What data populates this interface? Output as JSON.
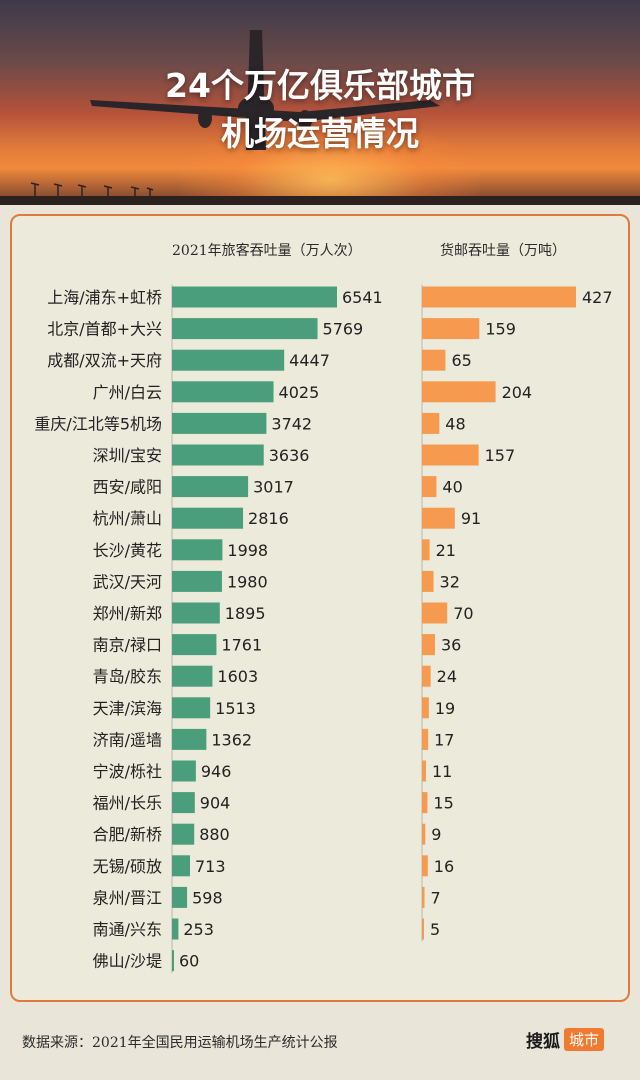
{
  "header": {
    "title_line1": "24个万亿俱乐部城市",
    "title_line2": "机场运营情况"
  },
  "columns": {
    "passenger_header": "2021年旅客吞吐量（万人次）",
    "cargo_header": "货邮吞吐量（万吨）"
  },
  "colors": {
    "passenger_bar": "#4a9e7c",
    "cargo_bar": "#f59a4f",
    "panel_border": "#e07a3c"
  },
  "chart_data": {
    "type": "bar",
    "orientation": "horizontal",
    "categories": [
      "上海/浦东+虹桥",
      "北京/首都+大兴",
      "成都/双流+天府",
      "广州/白云",
      "重庆/江北等5机场",
      "深圳/宝安",
      "西安/咸阳",
      "杭州/萧山",
      "长沙/黄花",
      "武汉/天河",
      "郑州/新郑",
      "南京/禄口",
      "青岛/胶东",
      "天津/滨海",
      "济南/遥墙",
      "宁波/栎社",
      "福州/长乐",
      "合肥/新桥",
      "无锡/硕放",
      "泉州/晋江",
      "南通/兴东",
      "佛山/沙堤"
    ],
    "series": [
      {
        "name": "2021年旅客吞吐量（万人次）",
        "values": [
          6541,
          5769,
          4447,
          4025,
          3742,
          3636,
          3017,
          2816,
          1998,
          1980,
          1895,
          1761,
          1603,
          1513,
          1362,
          946,
          904,
          880,
          713,
          598,
          253,
          60
        ]
      },
      {
        "name": "货邮吞吐量（万吨）",
        "values": [
          427,
          159,
          65,
          204,
          48,
          157,
          40,
          91,
          21,
          32,
          70,
          36,
          24,
          19,
          17,
          11,
          15,
          9,
          16,
          7,
          5,
          null
        ]
      }
    ]
  },
  "footer": {
    "source": "数据来源：2021年全国民用运输机场生产统计公报",
    "brand_name": "搜狐",
    "brand_tag": "城市"
  }
}
